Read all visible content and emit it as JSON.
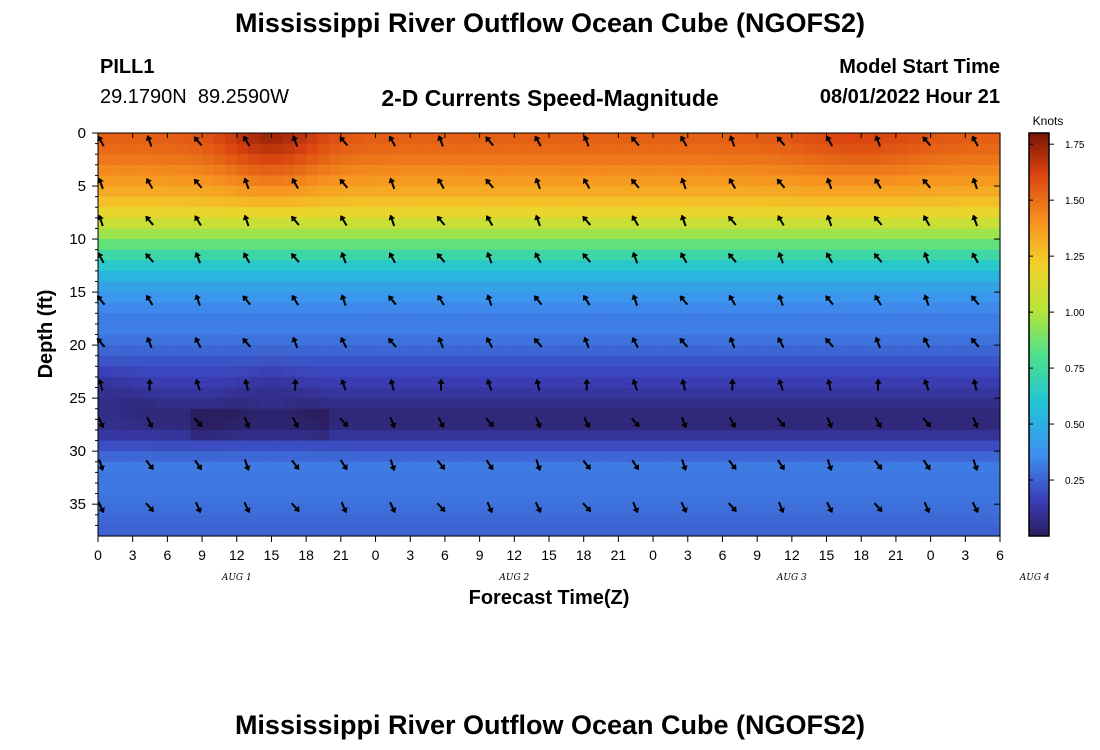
{
  "page": {
    "title": "Mississippi River Outflow Ocean Cube (NGOFS2)",
    "footer_title": "Mississippi River Outflow Ocean Cube (NGOFS2)",
    "station_id": "PILL1",
    "station_coords": "29.1790N  89.2590W",
    "plot_title": "2-D Currents Speed-Magnitude",
    "start_label": "Model Start Time",
    "start_value": "08/01/2022 Hour 21"
  },
  "chart_data": {
    "type": "heatmap",
    "xlabel": "Forecast Time(Z)",
    "ylabel": "Depth (ft)",
    "x_ticks": [
      "0",
      "3",
      "6",
      "9",
      "12",
      "15",
      "18",
      "21",
      "0",
      "3",
      "6",
      "9",
      "12",
      "15",
      "18",
      "21",
      "0",
      "3",
      "6",
      "9",
      "12",
      "15",
      "18",
      "21",
      "0",
      "3",
      "6"
    ],
    "date_labels": [
      {
        "label": "AUG 1",
        "hour": 12
      },
      {
        "label": "AUG 2",
        "hour": 36
      },
      {
        "label": "AUG 3",
        "hour": 60
      },
      {
        "label": "AUG 4",
        "hour": 81
      }
    ],
    "x_range_hours": [
      0,
      78
    ],
    "y_ticks": [
      0,
      5,
      10,
      15,
      20,
      25,
      30,
      35
    ],
    "ylim": [
      0,
      38
    ],
    "colorbar": {
      "title": "Knots",
      "ticks": [
        "1.75",
        "1.50",
        "1.25",
        "1.00",
        "0.75",
        "0.50",
        "0.25"
      ],
      "tick_values": [
        1.75,
        1.5,
        1.25,
        1.0,
        0.75,
        0.5,
        0.25
      ],
      "range": [
        0,
        1.8
      ]
    },
    "speed_profile": {
      "depth_ft": [
        0,
        2,
        4,
        6,
        8,
        10,
        12,
        14,
        16,
        18,
        20,
        22,
        24,
        26,
        28,
        30,
        32,
        34,
        36,
        38
      ],
      "speed_kn": [
        1.55,
        1.5,
        1.4,
        1.3,
        1.12,
        0.9,
        0.68,
        0.48,
        0.36,
        0.3,
        0.24,
        0.16,
        0.1,
        0.05,
        0.05,
        0.2,
        0.3,
        0.3,
        0.27,
        0.24
      ]
    },
    "vectors": {
      "depth_ft": [
        0.5,
        4.5,
        8,
        11.5,
        15.5,
        19.5,
        23.5,
        27,
        31,
        35
      ],
      "surface_angle_deg": 150,
      "bottom_angle_deg": 330
    }
  }
}
